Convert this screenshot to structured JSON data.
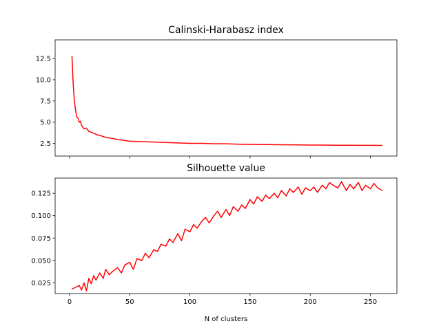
{
  "chart_data": [
    {
      "type": "line",
      "title": "Calinski-Harabasz index",
      "xlabel": "",
      "ylabel": "",
      "xlim": [
        -12,
        272
      ],
      "ylim": [
        1.0,
        14.7
      ],
      "xticks": [
        0,
        50,
        100,
        150,
        200,
        250
      ],
      "xtick_labels_visible": false,
      "yticks": [
        2.5,
        5.0,
        7.5,
        10.0,
        12.5
      ],
      "ytick_labels": [
        "2.5",
        "5.0",
        "7.5",
        "10.0",
        "12.5"
      ],
      "grid": false,
      "color": "#ff0000",
      "series": [
        {
          "x": [
            2,
            3,
            4,
            5,
            6,
            7,
            8,
            9,
            10,
            12,
            14,
            16,
            18,
            20,
            23,
            26,
            30,
            35,
            40,
            45,
            50,
            60,
            70,
            80,
            90,
            100,
            110,
            120,
            130,
            140,
            150,
            160,
            170,
            180,
            190,
            200,
            210,
            220,
            230,
            240,
            250,
            260
          ],
          "values": [
            12.8,
            9.5,
            7.5,
            6.4,
            5.6,
            5.5,
            5.0,
            5.1,
            4.6,
            4.2,
            4.3,
            3.9,
            3.8,
            3.7,
            3.5,
            3.4,
            3.2,
            3.1,
            2.95,
            2.85,
            2.75,
            2.7,
            2.65,
            2.6,
            2.55,
            2.5,
            2.5,
            2.45,
            2.45,
            2.4,
            2.38,
            2.36,
            2.35,
            2.33,
            2.32,
            2.3,
            2.3,
            2.28,
            2.28,
            2.27,
            2.27,
            2.26
          ]
        }
      ]
    },
    {
      "type": "line",
      "title": "Silhouette value",
      "xlabel": "N of clusters",
      "ylabel": "",
      "xlim": [
        -12,
        272
      ],
      "ylim": [
        0.013,
        0.142
      ],
      "xticks": [
        0,
        50,
        100,
        150,
        200,
        250
      ],
      "xtick_labels": [
        "0",
        "50",
        "100",
        "150",
        "200",
        "250"
      ],
      "yticks": [
        0.025,
        0.05,
        0.075,
        0.1,
        0.125
      ],
      "ytick_labels": [
        "0.025",
        "0.050",
        "0.075",
        "0.100",
        "0.125"
      ],
      "grid": false,
      "color": "#ff0000",
      "series": [
        {
          "x": [
            2,
            5,
            8,
            10,
            12,
            14,
            16,
            18,
            20,
            22,
            25,
            28,
            30,
            33,
            36,
            40,
            43,
            46,
            50,
            53,
            56,
            60,
            63,
            66,
            70,
            73,
            76,
            80,
            83,
            86,
            90,
            93,
            96,
            100,
            103,
            106,
            110,
            113,
            116,
            120,
            123,
            126,
            130,
            133,
            136,
            140,
            143,
            146,
            150,
            153,
            156,
            160,
            163,
            166,
            170,
            173,
            176,
            180,
            183,
            186,
            190,
            193,
            196,
            200,
            203,
            206,
            210,
            213,
            216,
            220,
            223,
            226,
            230,
            233,
            236,
            240,
            243,
            246,
            250,
            253,
            256,
            260
          ],
          "values": [
            0.018,
            0.02,
            0.022,
            0.017,
            0.025,
            0.016,
            0.03,
            0.024,
            0.033,
            0.028,
            0.036,
            0.03,
            0.04,
            0.034,
            0.038,
            0.042,
            0.036,
            0.045,
            0.048,
            0.04,
            0.052,
            0.05,
            0.058,
            0.053,
            0.062,
            0.06,
            0.068,
            0.066,
            0.074,
            0.07,
            0.08,
            0.072,
            0.085,
            0.082,
            0.09,
            0.086,
            0.094,
            0.098,
            0.092,
            0.1,
            0.105,
            0.098,
            0.107,
            0.1,
            0.11,
            0.105,
            0.112,
            0.108,
            0.118,
            0.113,
            0.121,
            0.116,
            0.123,
            0.119,
            0.125,
            0.12,
            0.128,
            0.122,
            0.13,
            0.126,
            0.132,
            0.124,
            0.131,
            0.128,
            0.132,
            0.126,
            0.134,
            0.13,
            0.137,
            0.133,
            0.131,
            0.138,
            0.128,
            0.135,
            0.13,
            0.137,
            0.128,
            0.134,
            0.13,
            0.136,
            0.131,
            0.128
          ]
        }
      ]
    }
  ]
}
